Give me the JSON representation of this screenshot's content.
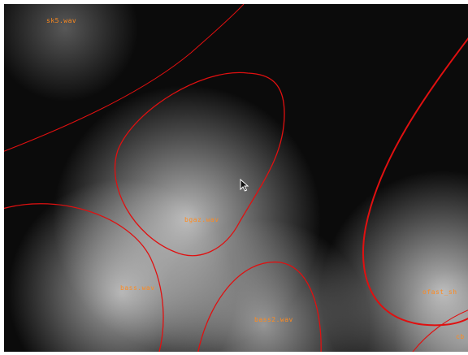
{
  "map": {
    "clips": [
      {
        "label": "sk5.wav"
      },
      {
        "label": "bgaz.wav"
      },
      {
        "label": "bass.wav"
      },
      {
        "label": "bass2.wav"
      },
      {
        "label": "ofast_sh"
      },
      {
        "label": "cb"
      }
    ],
    "contour_color": "#e01010",
    "clip_label_color": "#ff8a1e"
  },
  "cursor": {
    "icon": "mouse-pointer-icon"
  }
}
